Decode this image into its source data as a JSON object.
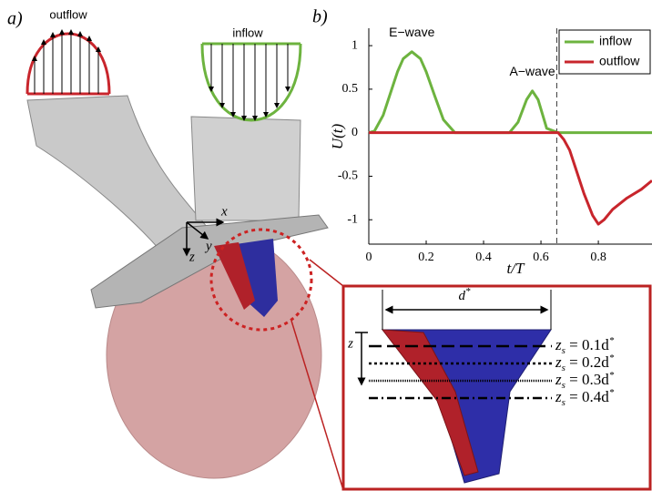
{
  "panel_a": {
    "label": "a)",
    "outflow": "outflow",
    "inflow": "inflow",
    "axis_x": "x",
    "axis_y": "y",
    "axis_z": "z",
    "inset": {
      "width_label": "d",
      "width_sup": "*",
      "depth_label": "z",
      "levels": [
        {
          "var": "z",
          "sub": "s",
          "eq": " = 0.1d",
          "sup": "*"
        },
        {
          "var": "z",
          "sub": "s",
          "eq": " = 0.2d",
          "sup": "*"
        },
        {
          "var": "z",
          "sub": "s",
          "eq": " = 0.3d",
          "sup": "*"
        },
        {
          "var": "z",
          "sub": "s",
          "eq": " = 0.4d",
          "sup": "*"
        }
      ]
    }
  },
  "chart_data": {
    "type": "line",
    "panel_label": "b)",
    "xlabel": "t/T",
    "ylabel": "U(t)",
    "annotations": [
      {
        "text": "E−wave",
        "x": 0.15,
        "y": 1.0
      },
      {
        "text": "A−wave",
        "x": 0.57,
        "y": 0.55
      }
    ],
    "x": [
      0,
      0.02,
      0.05,
      0.08,
      0.1,
      0.12,
      0.15,
      0.18,
      0.2,
      0.23,
      0.26,
      0.3,
      0.4,
      0.49,
      0.52,
      0.55,
      0.57,
      0.59,
      0.62,
      0.66,
      0.68,
      0.7,
      0.72,
      0.75,
      0.78,
      0.8,
      0.82,
      0.85,
      0.9,
      0.95,
      0.987
    ],
    "series": [
      {
        "name": "inflow",
        "color": "#6db33f",
        "values": [
          0,
          0.02,
          0.2,
          0.5,
          0.7,
          0.85,
          0.93,
          0.85,
          0.7,
          0.42,
          0.15,
          0,
          0,
          0,
          0.12,
          0.38,
          0.48,
          0.38,
          0.05,
          0,
          0,
          0,
          0,
          0,
          0,
          0,
          0,
          0,
          0,
          0,
          0
        ]
      },
      {
        "name": "outflow",
        "color": "#c8252c",
        "values": [
          0,
          0,
          0,
          0,
          0,
          0,
          0,
          0,
          0,
          0,
          0,
          0,
          0,
          0,
          0,
          0,
          0,
          0,
          0,
          0,
          -0.08,
          -0.2,
          -0.4,
          -0.7,
          -0.95,
          -1.05,
          -1.0,
          -0.88,
          -0.75,
          -0.65,
          -0.55
        ]
      }
    ],
    "vline_x": 0.655,
    "xlim": [
      0,
      0.987
    ],
    "ylim": [
      -1.28,
      1.2
    ],
    "xticks": [
      0,
      0.2,
      0.4,
      0.6,
      0.8
    ],
    "yticks": [
      -1,
      -0.5,
      0,
      0.5,
      1
    ],
    "legend": "upper right"
  }
}
